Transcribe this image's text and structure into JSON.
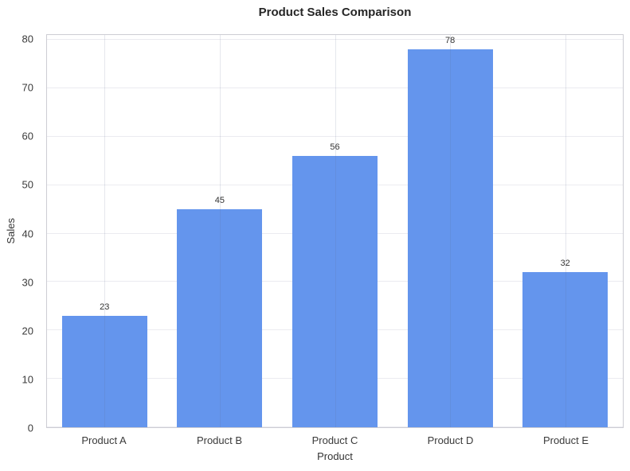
{
  "chart_data": {
    "type": "bar",
    "title": "Product Sales Comparison",
    "xlabel": "Product",
    "ylabel": "Sales",
    "categories": [
      "Product A",
      "Product B",
      "Product C",
      "Product D",
      "Product E"
    ],
    "values": [
      23,
      45,
      56,
      78,
      32
    ],
    "bar_value_labels": [
      "23",
      "45",
      "56",
      "78",
      "32"
    ],
    "yticks": [
      0,
      10,
      20,
      30,
      40,
      50,
      60,
      70,
      80
    ],
    "ylim": [
      0,
      81
    ],
    "grid": "on",
    "legend_position": "none",
    "bar_width_fraction": 0.74,
    "colors": {
      "bar": "#6495ED",
      "horizontal_grid": "#ebebf0",
      "spine": "#cdcdd4",
      "title_text": "#262626",
      "tick_text": "#3a3a3a",
      "background": "#ffffff"
    }
  }
}
